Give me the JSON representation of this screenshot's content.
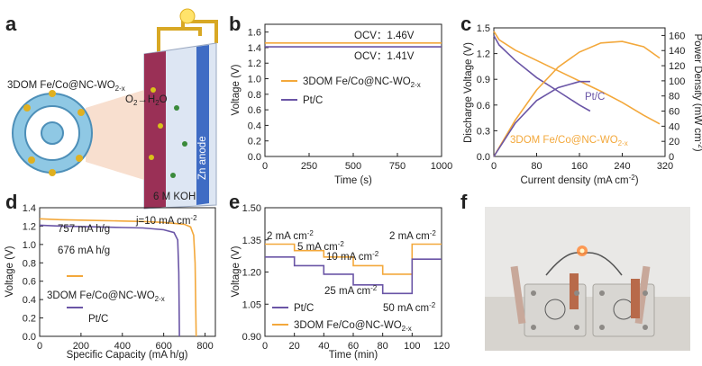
{
  "panel_labels": [
    "a",
    "b",
    "c",
    "d",
    "e",
    "f"
  ],
  "colors": {
    "fe": "#f3a83b",
    "pt": "#6a55a6"
  },
  "panel_a": {
    "material_label": "3DOM Fe/Co@NC-WO",
    "material_sub": "2-x",
    "reaction_o2": "O",
    "reaction_o2_sub": "2",
    "reaction_h2o": "H",
    "reaction_h2o_sub": "2",
    "reaction_h2o_tail": "O",
    "electrolyte": "6 M KOH",
    "anode": "Zn anode"
  },
  "chart_data": [
    {
      "id": "b",
      "type": "line",
      "xlabel": "Time (s)",
      "ylabel": "Voltage (V)",
      "xlim": [
        0,
        1000
      ],
      "ylim": [
        0.0,
        1.7
      ],
      "xticks": [
        "0",
        "250",
        "500",
        "750",
        "1000"
      ],
      "yticks": [
        "0.0",
        "0.2",
        "0.4",
        "0.6",
        "0.8",
        "1.0",
        "1.2",
        "1.4",
        "1.6"
      ],
      "series": [
        {
          "name": "3DOM Fe/Co@NC-WO",
          "name_sub": "2-x",
          "color": "#f3a83b",
          "x": [
            0,
            1000
          ],
          "y": [
            1.46,
            1.46
          ]
        },
        {
          "name": "Pt/C",
          "color": "#6a55a6",
          "x": [
            0,
            1000
          ],
          "y": [
            1.41,
            1.41
          ]
        }
      ],
      "annotations": [
        "OCV：1.46V",
        "OCV：1.41V"
      ]
    },
    {
      "id": "c",
      "type": "line",
      "xlabel": "Current density (mA cm",
      "xlabel_sup": "-2",
      "xlabel_tail": ")",
      "ylabel": "Discharge Voltage (V)",
      "ylabel_right": "Power Density (mW cm",
      "ylabel_right_sup": "-2",
      "ylabel_right_tail": ")",
      "xlim": [
        0,
        320
      ],
      "ylim": [
        0.0,
        1.5
      ],
      "ylim_right": [
        0,
        170
      ],
      "xticks": [
        "0",
        "80",
        "160",
        "240",
        "320"
      ],
      "yticks": [
        "0.0",
        "0.3",
        "0.6",
        "0.9",
        "1.2",
        "1.5"
      ],
      "yticks_right": [
        "0",
        "20",
        "40",
        "60",
        "80",
        "100",
        "120",
        "140",
        "160"
      ],
      "series": [
        {
          "name": "3DOM Fe/Co@NC-WO",
          "name_sub": "2-x",
          "kind": "polarization",
          "color": "#f3a83b",
          "x": [
            0,
            10,
            40,
            80,
            120,
            160,
            200,
            240,
            280,
            310
          ],
          "y": [
            1.46,
            1.36,
            1.24,
            1.12,
            1.0,
            0.88,
            0.76,
            0.63,
            0.48,
            0.38
          ]
        },
        {
          "name": "Pt/C",
          "kind": "polarization",
          "color": "#6a55a6",
          "x": [
            0,
            10,
            40,
            80,
            120,
            160,
            180
          ],
          "y": [
            1.41,
            1.3,
            1.12,
            0.92,
            0.76,
            0.6,
            0.53
          ]
        },
        {
          "name": "3DOM Fe/Co@NC-WO",
          "name_sub": "2-x",
          "kind": "power",
          "color": "#f3a83b",
          "x": [
            0,
            40,
            80,
            120,
            160,
            200,
            240,
            280,
            310
          ],
          "y": [
            0,
            48,
            88,
            118,
            138,
            150,
            152,
            145,
            130
          ]
        },
        {
          "name": "Pt/C",
          "kind": "power",
          "color": "#6a55a6",
          "x": [
            0,
            40,
            80,
            120,
            160,
            180
          ],
          "y": [
            0,
            44,
            74,
            91,
            99,
            99
          ]
        }
      ]
    },
    {
      "id": "d",
      "type": "line",
      "xlabel": "Specific Capacity (mA h/g)",
      "ylabel": "Voltage (V)",
      "xlim": [
        0,
        850
      ],
      "ylim": [
        0.0,
        1.4
      ],
      "xticks": [
        "0",
        "200",
        "400",
        "600",
        "800"
      ],
      "yticks": [
        "0.0",
        "0.2",
        "0.4",
        "0.6",
        "0.8",
        "1.0",
        "1.2",
        "1.4"
      ],
      "series": [
        {
          "name": "3DOM Fe/Co@NC-WO",
          "name_sub": "2-x",
          "color": "#f3a83b",
          "x": [
            0,
            100,
            200,
            300,
            400,
            500,
            600,
            700,
            730,
            745,
            752,
            757
          ],
          "y": [
            1.28,
            1.27,
            1.265,
            1.26,
            1.255,
            1.25,
            1.24,
            1.22,
            1.19,
            1.1,
            0.8,
            0.0
          ]
        },
        {
          "name": "Pt/C",
          "color": "#6a55a6",
          "x": [
            0,
            100,
            200,
            300,
            400,
            500,
            600,
            650,
            668,
            673,
            676
          ],
          "y": [
            1.21,
            1.2,
            1.195,
            1.19,
            1.185,
            1.18,
            1.16,
            1.13,
            1.05,
            0.7,
            0.0
          ]
        }
      ],
      "annotations": [
        "757 mA h/g",
        "676 mA h/g",
        "j=10 mA cm"
      ],
      "annotation_sup": "-2"
    },
    {
      "id": "e",
      "type": "line",
      "xlabel": "Time (min)",
      "ylabel": "Voltage (V)",
      "xlim": [
        0,
        120
      ],
      "ylim": [
        0.9,
        1.5
      ],
      "xticks": [
        "0",
        "20",
        "40",
        "60",
        "80",
        "100",
        "120"
      ],
      "yticks": [
        "0.90",
        "1.05",
        "1.20",
        "1.35",
        "1.50"
      ],
      "series": [
        {
          "name": "3DOM Fe/Co@NC-WO",
          "name_sub": "2-x",
          "color": "#f3a83b",
          "x": [
            0,
            20,
            20,
            40,
            40,
            60,
            60,
            80,
            80,
            100,
            100,
            120
          ],
          "y": [
            1.33,
            1.33,
            1.3,
            1.3,
            1.27,
            1.27,
            1.23,
            1.23,
            1.19,
            1.19,
            1.33,
            1.33
          ]
        },
        {
          "name": "Pt/C",
          "color": "#6a55a6",
          "x": [
            0,
            20,
            20,
            40,
            40,
            60,
            60,
            80,
            80,
            100,
            100,
            120
          ],
          "y": [
            1.27,
            1.27,
            1.23,
            1.23,
            1.19,
            1.19,
            1.14,
            1.14,
            1.1,
            1.1,
            1.26,
            1.26
          ]
        }
      ],
      "annotations": [
        {
          "text": "2 mA cm",
          "sup": "-2"
        },
        {
          "text": "5 mA cm",
          "sup": "-2"
        },
        {
          "text": "10 mA cm",
          "sup": "-2"
        },
        {
          "text": "25 mA cm",
          "sup": "-2"
        },
        {
          "text": "50 mA cm",
          "sup": "-2"
        },
        {
          "text": "2 mA cm",
          "sup": "-2"
        }
      ]
    }
  ]
}
